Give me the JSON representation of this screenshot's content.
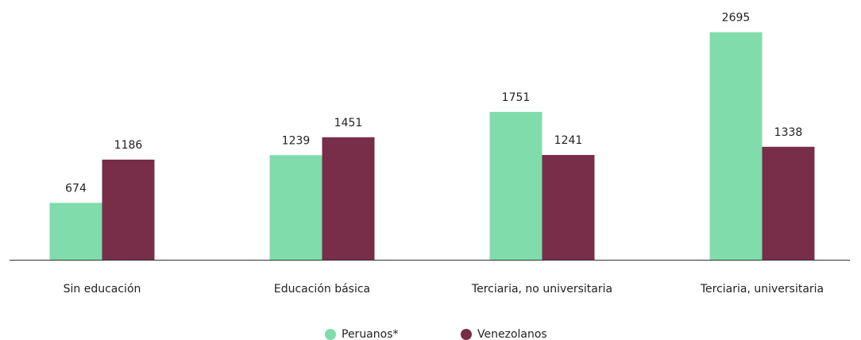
{
  "chart_data": {
    "type": "bar",
    "categories": [
      "Sin educación",
      "Educación básica",
      "Terciaria, no universitaria",
      "Terciaria, universitaria"
    ],
    "series": [
      {
        "name": "Peruanos*",
        "color": "#80dcaa",
        "values": [
          674,
          1239,
          1751,
          2695
        ]
      },
      {
        "name": "Venezolanos",
        "color": "#782d48",
        "values": [
          1186,
          1451,
          1241,
          1338
        ]
      }
    ],
    "ylim": [
      0,
      2700
    ],
    "legend": "bottom"
  }
}
